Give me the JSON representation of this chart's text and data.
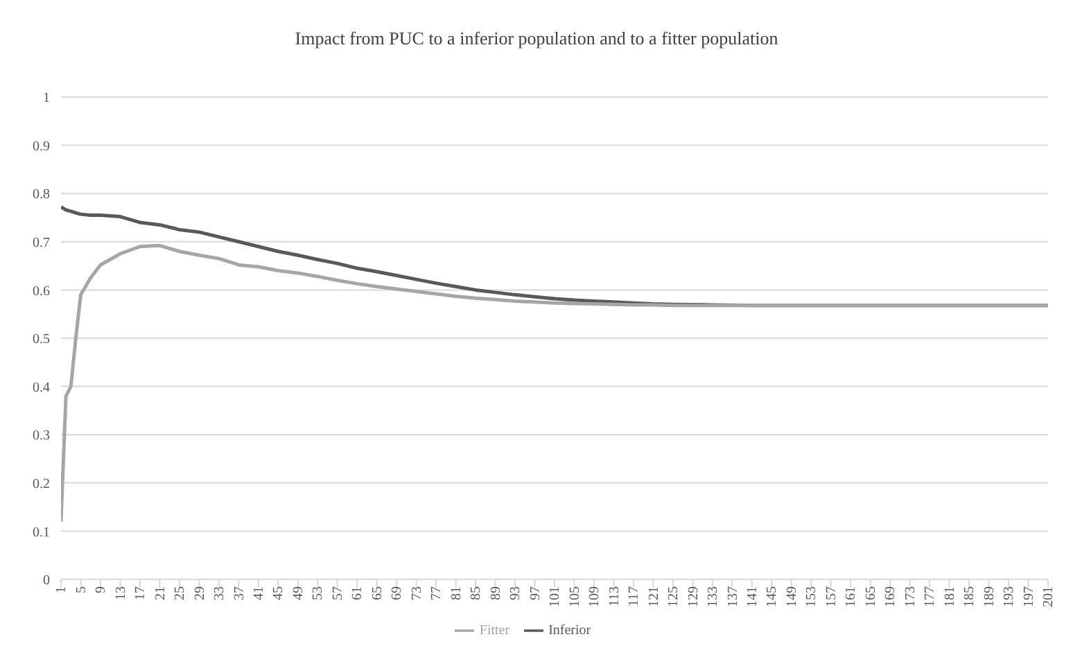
{
  "chart_data": {
    "type": "line",
    "title": "Impact from PUC to a inferior population and to a fitter population",
    "x": [
      1,
      2,
      3,
      4,
      5,
      7,
      9,
      13,
      17,
      21,
      25,
      29,
      33,
      37,
      41,
      45,
      49,
      53,
      57,
      61,
      65,
      69,
      73,
      77,
      81,
      85,
      89,
      93,
      97,
      101,
      105,
      109,
      113,
      117,
      121,
      125,
      133,
      141,
      161,
      181,
      201
    ],
    "series": [
      {
        "name": "Inferior",
        "color": "#595959",
        "values": [
          0.772,
          0.766,
          0.763,
          0.76,
          0.757,
          0.755,
          0.755,
          0.752,
          0.74,
          0.735,
          0.725,
          0.72,
          0.71,
          0.7,
          0.69,
          0.68,
          0.672,
          0.663,
          0.655,
          0.645,
          0.638,
          0.63,
          0.622,
          0.614,
          0.607,
          0.6,
          0.595,
          0.59,
          0.586,
          0.582,
          0.579,
          0.577,
          0.575,
          0.573,
          0.571,
          0.57,
          0.569,
          0.568,
          0.568,
          0.568,
          0.568
        ]
      },
      {
        "name": "Fitter",
        "color": "#a6a6a6",
        "values": [
          0.12,
          0.38,
          0.4,
          0.5,
          0.59,
          0.625,
          0.652,
          0.675,
          0.69,
          0.692,
          0.68,
          0.672,
          0.665,
          0.652,
          0.648,
          0.64,
          0.635,
          0.628,
          0.62,
          0.613,
          0.607,
          0.602,
          0.597,
          0.592,
          0.587,
          0.583,
          0.58,
          0.577,
          0.575,
          0.573,
          0.572,
          0.571,
          0.57,
          0.569,
          0.569,
          0.568,
          0.568,
          0.568,
          0.568,
          0.568,
          0.568
        ]
      }
    ],
    "xlim": [
      1,
      201
    ],
    "xticks": [
      1,
      5,
      9,
      13,
      17,
      21,
      25,
      29,
      33,
      37,
      41,
      45,
      49,
      53,
      57,
      61,
      65,
      69,
      73,
      77,
      81,
      85,
      89,
      93,
      97,
      101,
      105,
      109,
      113,
      117,
      121,
      125,
      129,
      133,
      137,
      141,
      145,
      149,
      153,
      157,
      161,
      165,
      169,
      173,
      177,
      181,
      185,
      189,
      193,
      197,
      201
    ],
    "ylim": [
      0,
      1
    ],
    "yticks": [
      0,
      0.1,
      0.2,
      0.3,
      0.4,
      0.5,
      0.6,
      0.7,
      0.8,
      0.9,
      1
    ],
    "grid": "y",
    "legend": "bottom",
    "marker": "none",
    "line_style": "solid"
  }
}
